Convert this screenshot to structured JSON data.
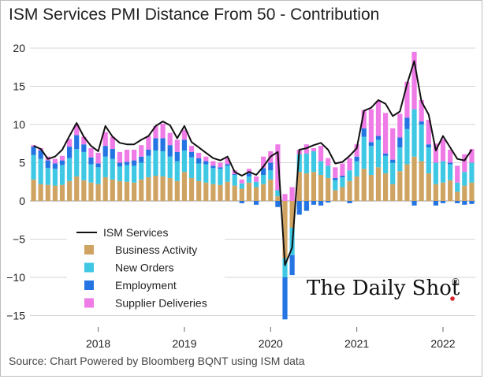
{
  "title": "ISM Services PMI Distance From 50 - Contribution",
  "source": "Source: Chart Powered by Bloomberg BQNT using ISM data",
  "logo_text": "The Daily Shot",
  "logo_mark": "®",
  "chart_data": {
    "type": "bar",
    "stacked": true,
    "ylim": [
      -16,
      20
    ],
    "yticks": [
      20,
      15,
      10,
      5,
      0,
      -5,
      -10,
      -15
    ],
    "grid": true,
    "legend_position": "lower-left",
    "xticks": [
      {
        "label": "2018",
        "index": 9
      },
      {
        "label": "2019",
        "index": 21
      },
      {
        "label": "2020",
        "index": 33
      },
      {
        "label": "2021",
        "index": 45
      },
      {
        "label": "2022",
        "index": 57
      }
    ],
    "series": [
      {
        "name": "Business Activity",
        "color": "#cfa463",
        "values": [
          2.8,
          2.2,
          2.1,
          2.0,
          2.1,
          2.6,
          3.2,
          2.7,
          2.4,
          2.2,
          3.1,
          2.8,
          2.6,
          2.5,
          2.4,
          2.8,
          3.1,
          3.3,
          3.2,
          3.0,
          2.6,
          3.8,
          3.0,
          2.6,
          2.4,
          2.2,
          2.1,
          2.5,
          2.0,
          1.6,
          2.4,
          1.8,
          2.2,
          2.8,
          0.6,
          -7.5,
          -3.5,
          3.8,
          3.6,
          3.8,
          3.4,
          3.0,
          1.4,
          1.8,
          2.6,
          3.2,
          4.2,
          3.4,
          4.4,
          3.6,
          2.2,
          3.9,
          4.8,
          5.8,
          5.2,
          3.6,
          2.2,
          2.4,
          2.7,
          1.2,
          2.0,
          2.4
        ]
      },
      {
        "name": "New Orders",
        "color": "#3fc8e4",
        "values": [
          3.2,
          3.3,
          2.2,
          2.2,
          2.6,
          3.0,
          3.6,
          3.7,
          2.4,
          2.2,
          2.7,
          2.7,
          1.9,
          2.2,
          2.2,
          2.2,
          2.8,
          3.3,
          3.3,
          2.8,
          2.6,
          2.8,
          2.7,
          2.3,
          2.4,
          2.1,
          2.1,
          2.1,
          1.4,
          0.7,
          0.8,
          0.7,
          1.2,
          1.2,
          0.8,
          -2.5,
          -3.6,
          2.3,
          2.6,
          2.7,
          1.8,
          1.6,
          1.3,
          1.3,
          1.4,
          2.0,
          4.2,
          3.8,
          3.6,
          2.3,
          2.8,
          3.1,
          4.6,
          6.2,
          4.8,
          3.4,
          2.8,
          2.8,
          2.1,
          1.2,
          1.8,
          2.6
        ]
      },
      {
        "name": "Employment",
        "color": "#2475e3",
        "values": [
          1.1,
          1.1,
          1.0,
          0.7,
          0.6,
          1.5,
          1.8,
          1.0,
          0.9,
          0.5,
          1.4,
          1.3,
          0.5,
          0.4,
          0.7,
          0.8,
          0.8,
          1.6,
          1.7,
          1.5,
          1.2,
          1.4,
          0.7,
          0.7,
          0.4,
          0.3,
          0.2,
          0.2,
          0.1,
          -0.3,
          0.4,
          -0.5,
          0.9,
          1.0,
          -0.8,
          -5.5,
          -2.6,
          -1.8,
          -1.3,
          -0.5,
          -0.6,
          -0.2,
          0.3,
          0.2,
          -0.3,
          0.6,
          1.1,
          0.5,
          0.5,
          0.3,
          0.4,
          1.3,
          1.5,
          -0.6,
          0.4,
          0.4,
          -0.6,
          -0.3,
          0.2,
          -0.3,
          -0.5,
          -0.4
        ]
      },
      {
        "name": "Supplier Deliveries",
        "color": "#ef7be6",
        "values": [
          0.2,
          0.3,
          0.5,
          0.6,
          0.6,
          1.0,
          1.4,
          1.0,
          1.2,
          1.4,
          1.8,
          1.6,
          1.4,
          1.6,
          1.4,
          1.5,
          1.8,
          1.6,
          1.9,
          1.6,
          1.6,
          1.3,
          0.8,
          0.7,
          0.6,
          0.6,
          0.6,
          0.8,
          0.5,
          0.5,
          0.6,
          0.7,
          1.5,
          1.5,
          6.0,
          0.9,
          1.8,
          0.6,
          1.2,
          0.4,
          2.0,
          1.0,
          1.4,
          1.6,
          1.6,
          1.6,
          2.4,
          4.3,
          4.6,
          5.3,
          4.1,
          3.1,
          4.7,
          7.5,
          2.8,
          3.2,
          2.5,
          2.9,
          1.7,
          2.2,
          2.3,
          1.8
        ]
      }
    ],
    "line": {
      "name": "ISM Services",
      "color": "#111111",
      "values": [
        7.2,
        6.8,
        5.5,
        5.8,
        6.7,
        8.5,
        10.2,
        8.4,
        7.2,
        6.5,
        9.8,
        8.4,
        7.6,
        7.4,
        7.4,
        8.0,
        8.5,
        9.8,
        10.4,
        9.9,
        8.2,
        9.8,
        7.7,
        7.0,
        6.3,
        5.6,
        5.3,
        5.8,
        3.8,
        3.3,
        3.8,
        3.4,
        4.5,
        5.8,
        6.4,
        -8.4,
        -6.1,
        6.7,
        6.9,
        7.3,
        7.6,
        6.7,
        4.9,
        5.1,
        5.9,
        6.9,
        11.8,
        12.2,
        13.2,
        12.7,
        11.1,
        11.7,
        15.3,
        18.3,
        13.0,
        11.3,
        6.6,
        8.5,
        7.0,
        5.5,
        5.3,
        6.7
      ]
    }
  }
}
